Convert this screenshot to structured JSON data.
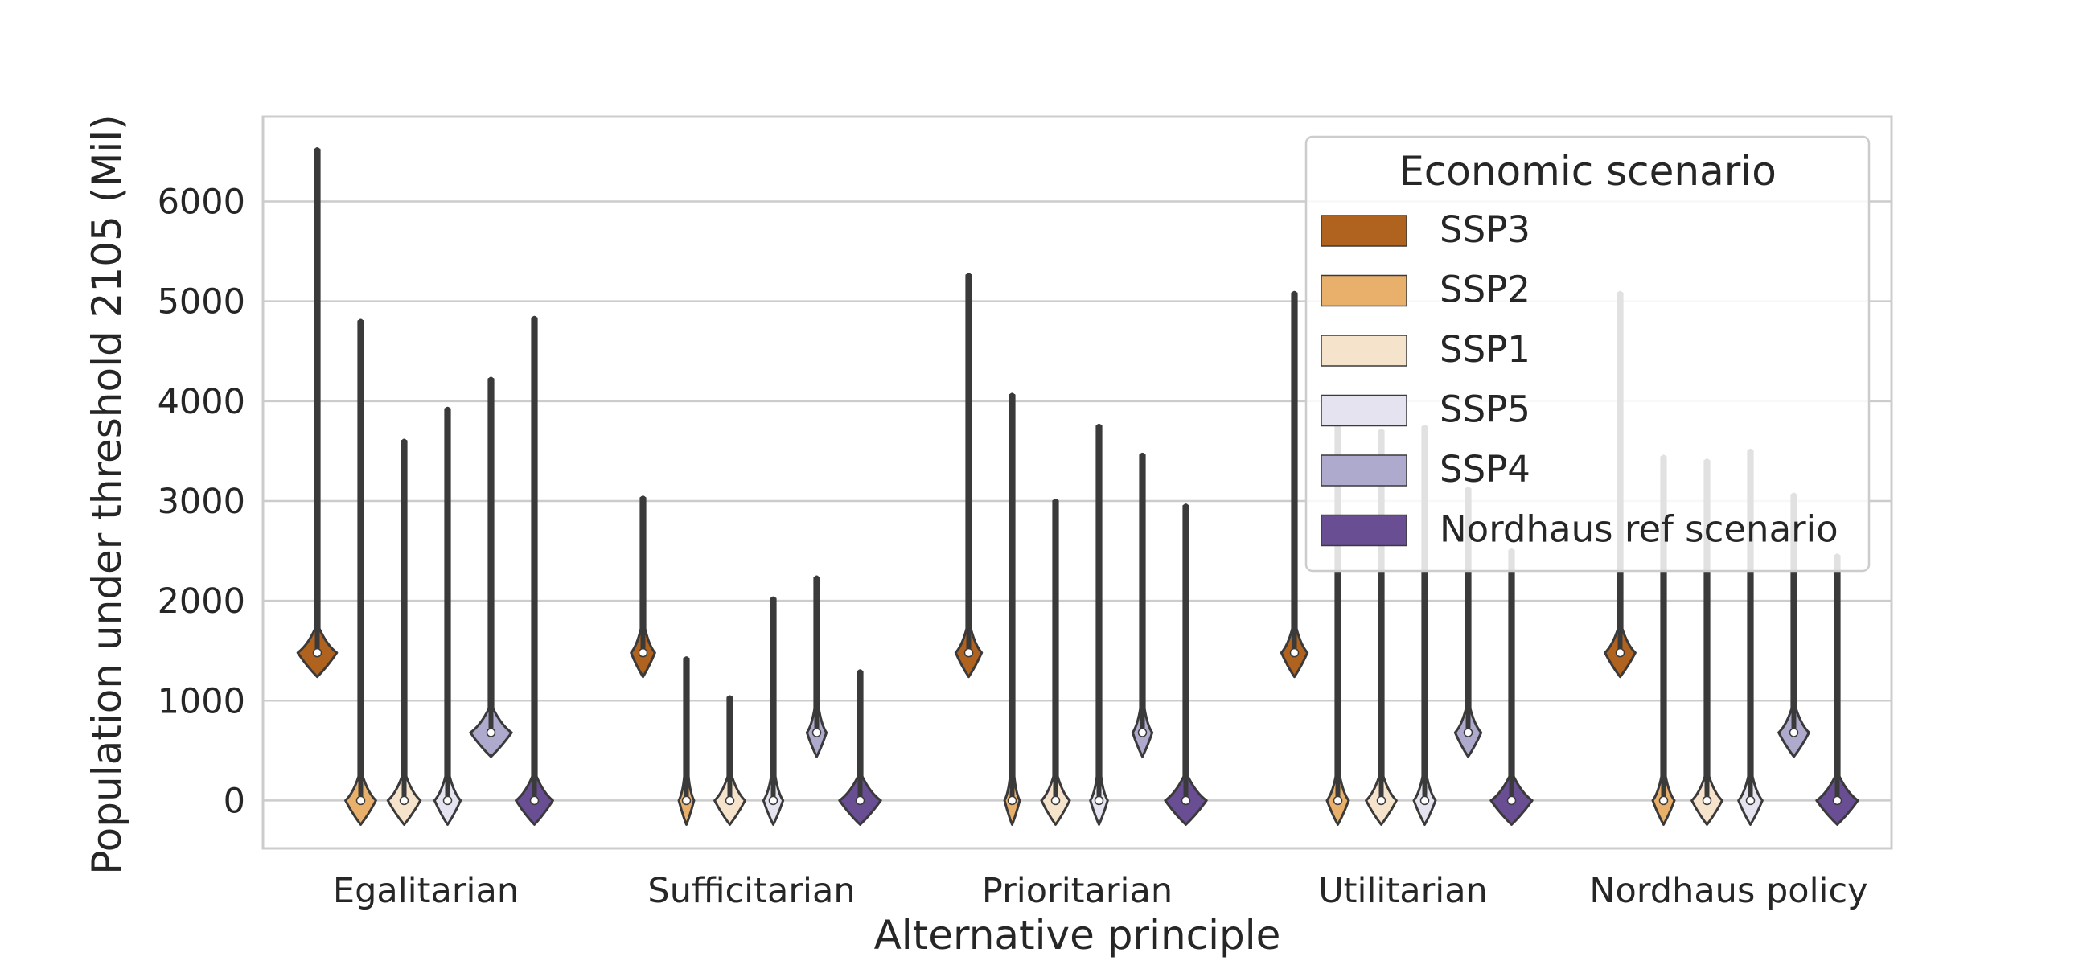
{
  "chart_data": {
    "type": "violin",
    "xlabel": "Alternative principle",
    "ylabel": "Population under threshold 2105 (Mil)",
    "ylim": [
      -480,
      6850
    ],
    "yticks": [
      0,
      1000,
      2000,
      3000,
      4000,
      5000,
      6000
    ],
    "grid": true,
    "categories": [
      "Egalitarian",
      "Sufficitarian",
      "Prioritarian",
      "Utilitarian",
      "Nordhaus policy"
    ],
    "legend": {
      "title": "Economic scenario",
      "placement": "top-right",
      "entries": [
        "SSP3",
        "SSP2",
        "SSP1",
        "SSP5",
        "SSP4",
        "Nordhaus ref scenario"
      ]
    },
    "colors": {
      "SSP3": "#b0621f",
      "SSP2": "#e8b06b",
      "SSP1": "#f5e3cc",
      "SSP5": "#e4e3ef",
      "SSP4": "#aeaacd",
      "Nordhaus ref scenario": "#6a4e93",
      "grid": "#cccccc",
      "frame": "#cccccc",
      "outline": "#3a3a3a"
    },
    "series": [
      {
        "name": "SSP3",
        "values": [
          {
            "category": "Egalitarian",
            "max": 6520,
            "median": 1480,
            "center": 1480,
            "width": 0.9
          },
          {
            "category": "Sufficitarian",
            "max": 3030,
            "median": 1480,
            "center": 1480,
            "width": 0.55
          },
          {
            "category": "Prioritarian",
            "max": 5260,
            "median": 1480,
            "center": 1480,
            "width": 0.6
          },
          {
            "category": "Utilitarian",
            "max": 5080,
            "median": 1480,
            "center": 1480,
            "width": 0.6
          },
          {
            "category": "Nordhaus policy",
            "max": 5080,
            "median": 1480,
            "center": 1480,
            "width": 0.7
          }
        ]
      },
      {
        "name": "SSP2",
        "values": [
          {
            "category": "Egalitarian",
            "max": 4800,
            "median": 0,
            "center": 0,
            "width": 0.7
          },
          {
            "category": "Sufficitarian",
            "max": 1420,
            "median": 0,
            "center": 0,
            "width": 0.35
          },
          {
            "category": "Prioritarian",
            "max": 4060,
            "median": 0,
            "center": 0,
            "width": 0.35
          },
          {
            "category": "Utilitarian",
            "max": 4000,
            "median": 0,
            "center": 0,
            "width": 0.5
          },
          {
            "category": "Nordhaus policy",
            "max": 3440,
            "median": 0,
            "center": 0,
            "width": 0.5
          }
        ]
      },
      {
        "name": "SSP1",
        "values": [
          {
            "category": "Egalitarian",
            "max": 3600,
            "median": 0,
            "center": 0,
            "width": 0.75
          },
          {
            "category": "Sufficitarian",
            "max": 1030,
            "median": 0,
            "center": 0,
            "width": 0.7
          },
          {
            "category": "Prioritarian",
            "max": 3000,
            "median": 0,
            "center": 0,
            "width": 0.65
          },
          {
            "category": "Utilitarian",
            "max": 3700,
            "median": 0,
            "center": 0,
            "width": 0.7
          },
          {
            "category": "Nordhaus policy",
            "max": 3400,
            "median": 0,
            "center": 0,
            "width": 0.7
          }
        ]
      },
      {
        "name": "SSP5",
        "values": [
          {
            "category": "Egalitarian",
            "max": 3920,
            "median": 0,
            "center": 0,
            "width": 0.6
          },
          {
            "category": "Sufficitarian",
            "max": 2020,
            "median": 0,
            "center": 0,
            "width": 0.45
          },
          {
            "category": "Prioritarian",
            "max": 3750,
            "median": 0,
            "center": 0,
            "width": 0.4
          },
          {
            "category": "Utilitarian",
            "max": 3740,
            "median": 0,
            "center": 0,
            "width": 0.5
          },
          {
            "category": "Nordhaus policy",
            "max": 3500,
            "median": 0,
            "center": 0,
            "width": 0.55
          }
        ]
      },
      {
        "name": "SSP4",
        "values": [
          {
            "category": "Egalitarian",
            "max": 4220,
            "median": 680,
            "center": 680,
            "width": 0.95
          },
          {
            "category": "Sufficitarian",
            "max": 2230,
            "median": 680,
            "center": 680,
            "width": 0.45
          },
          {
            "category": "Prioritarian",
            "max": 3460,
            "median": 680,
            "center": 680,
            "width": 0.45
          },
          {
            "category": "Utilitarian",
            "max": 3120,
            "median": 680,
            "center": 680,
            "width": 0.6
          },
          {
            "category": "Nordhaus policy",
            "max": 3060,
            "median": 680,
            "center": 680,
            "width": 0.7
          }
        ]
      },
      {
        "name": "Nordhaus ref scenario",
        "values": [
          {
            "category": "Egalitarian",
            "max": 4830,
            "median": 0,
            "center": 0,
            "width": 0.85
          },
          {
            "category": "Sufficitarian",
            "max": 1290,
            "median": 0,
            "center": 0,
            "width": 0.95
          },
          {
            "category": "Prioritarian",
            "max": 2950,
            "median": 0,
            "center": 0,
            "width": 0.95
          },
          {
            "category": "Utilitarian",
            "max": 2500,
            "median": 0,
            "center": 0,
            "width": 0.95
          },
          {
            "category": "Nordhaus policy",
            "max": 2450,
            "median": 0,
            "center": 0,
            "width": 0.95
          }
        ]
      }
    ]
  }
}
